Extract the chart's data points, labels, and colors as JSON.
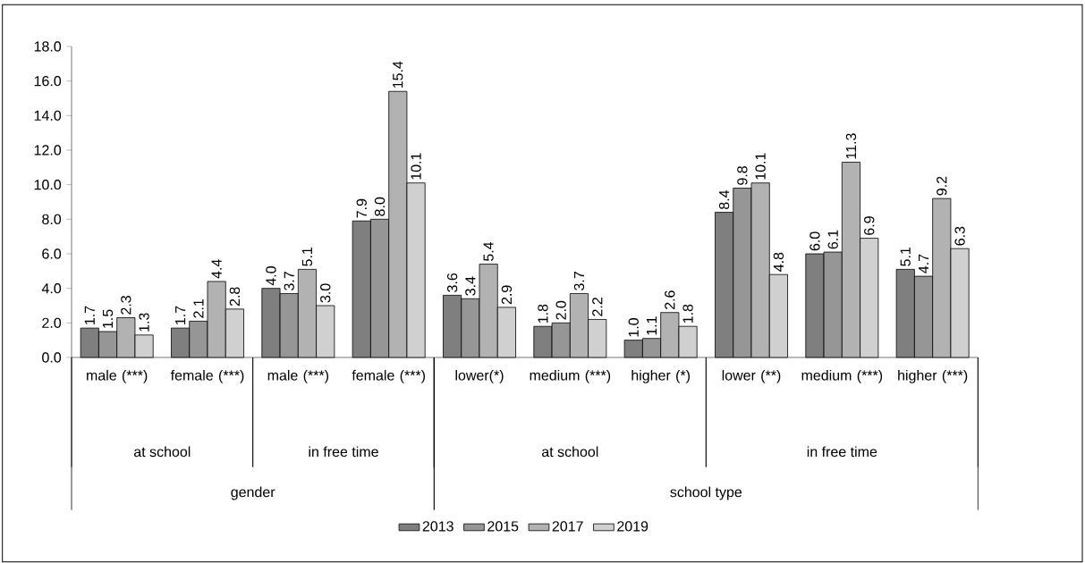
{
  "chart_data": {
    "type": "bar",
    "categories": [
      "male (***)",
      "female (***)",
      "male (***)",
      "female (***)",
      "lower(*)",
      "medium (***)",
      "higher (*)",
      "lower (**)",
      "medium (***)",
      "higher (***)"
    ],
    "annotations": [
      "at school",
      "in free time",
      "at school",
      "in free time",
      "gender",
      "school type"
    ],
    "series": [
      {
        "name": "2013",
        "color": "#7f7f7f",
        "values": [
          1.7,
          1.7,
          4.0,
          7.9,
          3.6,
          1.8,
          1.0,
          8.4,
          6.0,
          5.1
        ],
        "value_labels": [
          "1.7",
          "1.7",
          "4.0",
          "7.9",
          "3.6",
          "1.8",
          "1.0",
          "8.4",
          "6.0",
          "5.1"
        ]
      },
      {
        "name": "2015",
        "color": "#969696",
        "values": [
          1.5,
          2.1,
          3.7,
          8.0,
          3.4,
          2.0,
          1.1,
          9.8,
          6.1,
          4.7
        ],
        "value_labels": [
          "1.5",
          "2.1",
          "3.7",
          "8.0",
          "3.4",
          "2.0",
          "1.1",
          "9.8",
          "6.1",
          "4.7"
        ]
      },
      {
        "name": "2017",
        "color": "#b2b2b2",
        "values": [
          2.3,
          4.4,
          5.1,
          15.4,
          5.4,
          3.7,
          2.6,
          10.1,
          11.3,
          9.2
        ],
        "value_labels": [
          "2.3",
          "4.4",
          "5.1",
          "15.4",
          "5.4",
          "3.7",
          "2.6",
          "10.1",
          "11.3",
          "9.2"
        ]
      },
      {
        "name": "2019",
        "color": "#d0d0d0",
        "values": [
          1.3,
          2.8,
          3.0,
          10.1,
          2.9,
          2.2,
          1.8,
          4.8,
          6.9,
          6.3
        ],
        "value_labels": [
          "1.3",
          "2.8",
          "3.0",
          "10.1",
          "2.9",
          "2.2",
          "1.8",
          "4.8",
          "6.9",
          "6.3"
        ]
      }
    ],
    "ylim": [
      0,
      18
    ],
    "yticks": [
      {
        "value": 0,
        "label": "0.0"
      },
      {
        "value": 2,
        "label": "2.0"
      },
      {
        "value": 4,
        "label": "4.0"
      },
      {
        "value": 6,
        "label": "6.0"
      },
      {
        "value": 8,
        "label": "8.0"
      },
      {
        "value": 10,
        "label": "10.0"
      },
      {
        "value": 12,
        "label": "12.0"
      },
      {
        "value": 14,
        "label": "14.0"
      },
      {
        "value": 16,
        "label": "16.0"
      },
      {
        "value": 18,
        "label": "18.0"
      }
    ],
    "legend": "bottom",
    "grid": false
  }
}
